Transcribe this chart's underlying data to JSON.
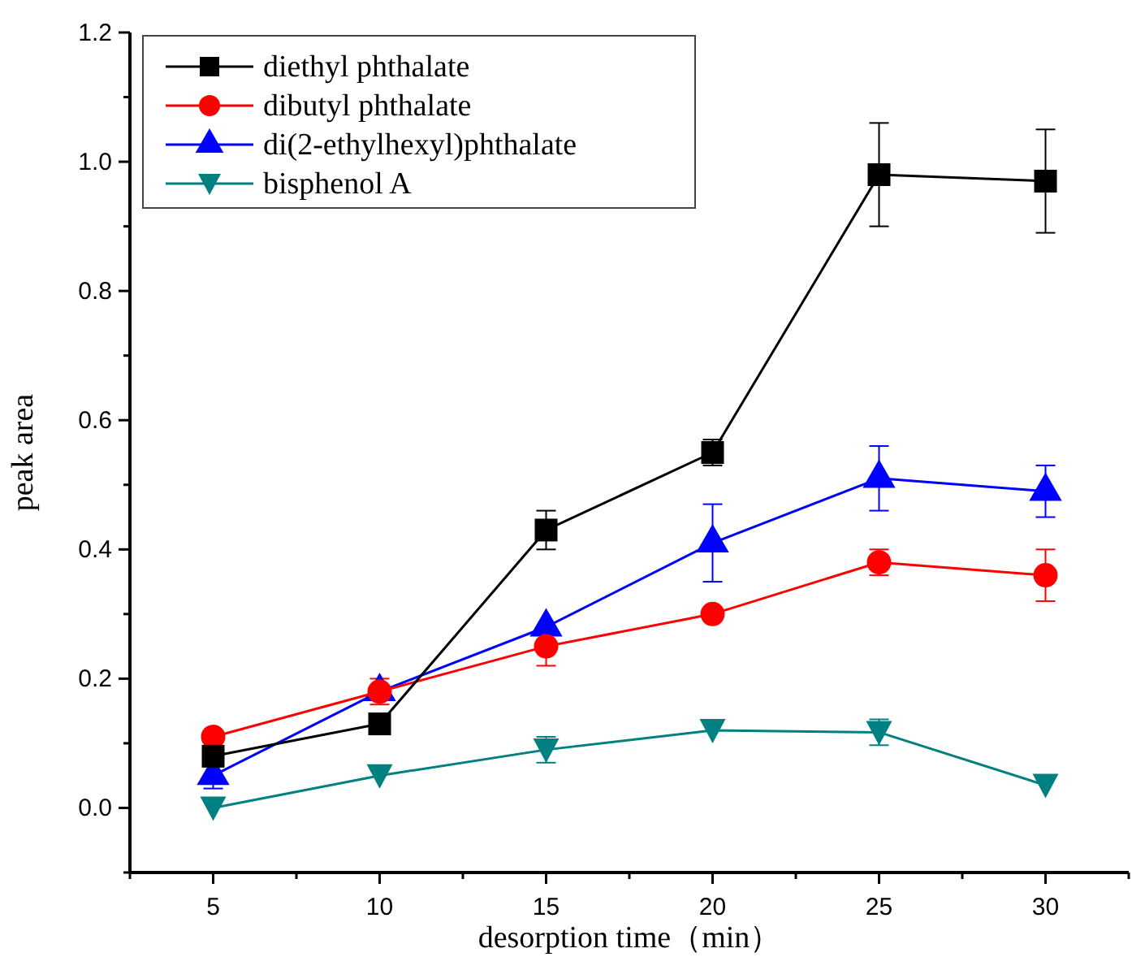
{
  "chart_data": {
    "type": "line",
    "xlabel": "desorption time（min）",
    "ylabel": "peak area",
    "x": [
      5,
      10,
      15,
      20,
      25,
      30
    ],
    "xlim": [
      2.5,
      32.5
    ],
    "xticks": [
      {
        "value": 2.5,
        "label": null
      },
      5,
      {
        "value": 7.5,
        "label": null
      },
      10,
      {
        "value": 12.5,
        "label": null
      },
      15,
      {
        "value": 17.5,
        "label": null
      },
      20,
      {
        "value": 22.5,
        "label": null
      },
      25,
      {
        "value": 27.5,
        "label": null
      },
      30,
      {
        "value": 32.5,
        "label": null
      }
    ],
    "ylim": [
      -0.1,
      1.2
    ],
    "yticks": [
      {
        "value": -0.1,
        "label": null
      },
      {
        "value": 0,
        "label": "0.0"
      },
      {
        "value": 0.1,
        "label": null
      },
      0.2,
      {
        "value": 0.3,
        "label": null
      },
      0.4,
      {
        "value": 0.5,
        "label": null
      },
      0.6,
      {
        "value": 0.7,
        "label": null
      },
      0.8,
      {
        "value": 0.9,
        "label": null
      },
      {
        "value": 1,
        "label": "1.0"
      },
      {
        "value": 1.1,
        "label": null
      },
      1.2
    ],
    "legend": "top left",
    "grid": false,
    "line_style": "solid",
    "series": [
      {
        "name": "diethyl phthalate",
        "color": "#000000",
        "marker": "square",
        "values": [
          0.08,
          0.13,
          0.43,
          0.55,
          0.98,
          0.97
        ],
        "errors": [
          null,
          null,
          0.03,
          0.02,
          0.08,
          0.08
        ]
      },
      {
        "name": "dibutyl phthalate",
        "color": "#ff0000",
        "marker": "circle",
        "values": [
          0.11,
          0.18,
          0.25,
          0.3,
          0.38,
          0.36
        ],
        "errors": [
          null,
          0.02,
          0.03,
          null,
          0.02,
          0.04
        ]
      },
      {
        "name": "di(2-ethylhexyl)phthalate",
        "color": "#0000ff",
        "marker": "triangle",
        "values": [
          0.05,
          0.18,
          0.28,
          0.41,
          0.51,
          0.49
        ],
        "errors": [
          0.02,
          null,
          null,
          0.06,
          0.05,
          0.04
        ]
      },
      {
        "name": "bisphenol A",
        "color": "#008080",
        "marker": "triangle-down",
        "values": [
          0.0,
          0.05,
          0.09,
          0.12,
          0.117,
          0.035
        ],
        "errors": [
          null,
          null,
          0.02,
          null,
          0.02,
          null
        ]
      }
    ]
  }
}
